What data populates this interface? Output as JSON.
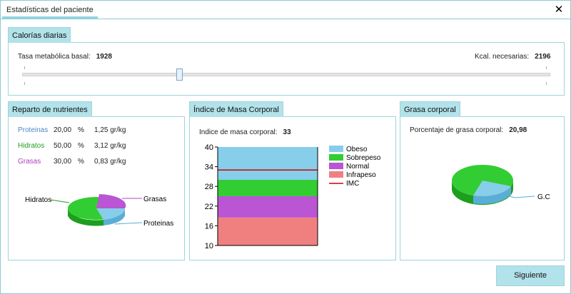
{
  "window": {
    "title": "Estadísticas del paciente",
    "close_glyph": "✕"
  },
  "calorias": {
    "label": "Calorías diarias",
    "tmb_label": "Tasa metabólica basal:",
    "tmb_value": "1928",
    "kcal_label": "Kcal. necesarias:",
    "kcal_value": "2196"
  },
  "nutrientes": {
    "label": "Reparto de nutrientes",
    "rows": [
      {
        "name": "Proteinas",
        "pct": "20,00",
        "unit": "%",
        "gr": "1,25 gr/kg",
        "color": "#4f86c6"
      },
      {
        "name": "Hidratos",
        "pct": "50,00",
        "unit": "%",
        "gr": "3,12 gr/kg",
        "color": "#1e9e1e"
      },
      {
        "name": "Grasas",
        "pct": "30,00",
        "unit": "%",
        "gr": "0,83 gr/kg",
        "color": "#b040c0"
      }
    ],
    "pie_labels": {
      "hidratos": "Hidratos",
      "grasas": "Grasas",
      "proteinas": "Proteinas"
    }
  },
  "imc": {
    "label": "Índice de Masa Corporal",
    "value_label": "Indice de masa corporal:",
    "value": "33",
    "chart_data": {
      "type": "area",
      "y_ticks": [
        "40",
        "34",
        "28",
        "22",
        "16",
        "10"
      ],
      "ylim": [
        10,
        40
      ],
      "bands": [
        {
          "name": "Obeso",
          "from": 30,
          "to": 40,
          "color": "#87ceeb"
        },
        {
          "name": "Sobrepeso",
          "from": 25,
          "to": 30,
          "color": "#32cd32"
        },
        {
          "name": "Normal",
          "from": 18.5,
          "to": 25,
          "color": "#ba55d3"
        },
        {
          "name": "Infrapeso",
          "from": 10,
          "to": 18.5,
          "color": "#f08080"
        }
      ],
      "line": {
        "name": "IMC",
        "value": 33,
        "color": "#cc0000"
      }
    }
  },
  "grasa": {
    "label": "Grasa corporal",
    "value_label": "Porcentaje de grasa corporal:",
    "value": "20,98",
    "pie_label": "G.C"
  },
  "footer": {
    "next_label": "Siguiente"
  }
}
